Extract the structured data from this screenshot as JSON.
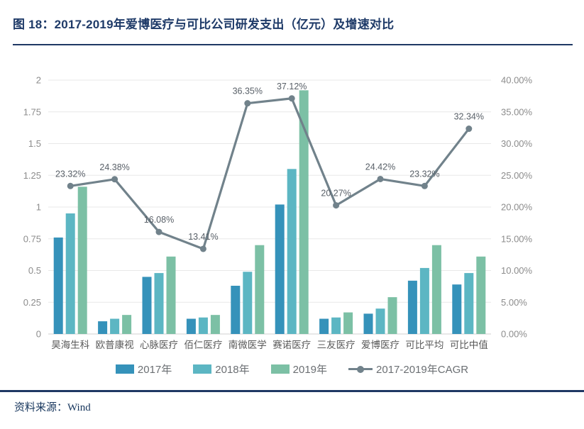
{
  "header": {
    "title": "图 18：2017-2019年爱博医疗与可比公司研发支出（亿元）及增速对比"
  },
  "footer": {
    "source": "资料来源：Wind"
  },
  "colors": {
    "title_text": "#1e3a68",
    "rule": "#1f3864",
    "bar_2017": "#3592ba",
    "bar_2018": "#5cb6c3",
    "bar_2019": "#7cc0a5",
    "cagr_line": "#71828b",
    "grid_line": "#e8e8e8",
    "axis_line": "#d0d0d0",
    "axis_tick_text": "#8c8c8c",
    "category_text": "#595959",
    "point_label_text": "#596068",
    "footer_text": "#17365d"
  },
  "chart_data": {
    "type": "bar",
    "subtype": "grouped-bars-with-line-overlay",
    "title": "2017-2019年爱博医疗与可比公司研发支出（亿元）及增速对比",
    "categories": [
      "昊海生科",
      "欧普康视",
      "心脉医疗",
      "佰仁医疗",
      "南微医学",
      "赛诺医疗",
      "三友医疗",
      "爱博医疗",
      "可比平均",
      "可比中值"
    ],
    "series": [
      {
        "name": "2017年",
        "type": "bar",
        "yaxis": "left",
        "values": [
          0.76,
          0.1,
          0.45,
          0.12,
          0.38,
          1.02,
          0.12,
          0.16,
          0.42,
          0.39
        ]
      },
      {
        "name": "2018年",
        "type": "bar",
        "yaxis": "left",
        "values": [
          0.95,
          0.12,
          0.48,
          0.13,
          0.49,
          1.3,
          0.13,
          0.2,
          0.52,
          0.48
        ]
      },
      {
        "name": "2019年",
        "type": "bar",
        "yaxis": "left",
        "values": [
          1.16,
          0.15,
          0.61,
          0.15,
          0.7,
          1.92,
          0.17,
          0.29,
          0.7,
          0.61
        ]
      },
      {
        "name": "2017-2019年CAGR",
        "type": "line",
        "yaxis": "right",
        "values": [
          23.32,
          24.38,
          16.08,
          13.41,
          36.35,
          37.12,
          20.27,
          24.42,
          23.32,
          32.34
        ],
        "point_labels": [
          "23.32%",
          "24.38%",
          "16.08%",
          "13.41%",
          "36.35%",
          "37.12%",
          "20.27%",
          "24.42%",
          "23.32%",
          "32.34%"
        ]
      }
    ],
    "left_axis": {
      "min": 0,
      "max": 2,
      "step": 0.25,
      "ticks": [
        "0",
        "0.25",
        "0.5",
        "0.75",
        "1",
        "1.25",
        "1.5",
        "1.75",
        "2"
      ]
    },
    "right_axis": {
      "min": 0,
      "max": 40,
      "step": 5,
      "ticks": [
        "0.00%",
        "5.00%",
        "10.00%",
        "15.00%",
        "20.00%",
        "25.00%",
        "30.00%",
        "35.00%",
        "40.00%"
      ]
    },
    "grid": true,
    "legend_position": "bottom",
    "legend": [
      "2017年",
      "2018年",
      "2019年",
      "2017-2019年CAGR"
    ]
  }
}
